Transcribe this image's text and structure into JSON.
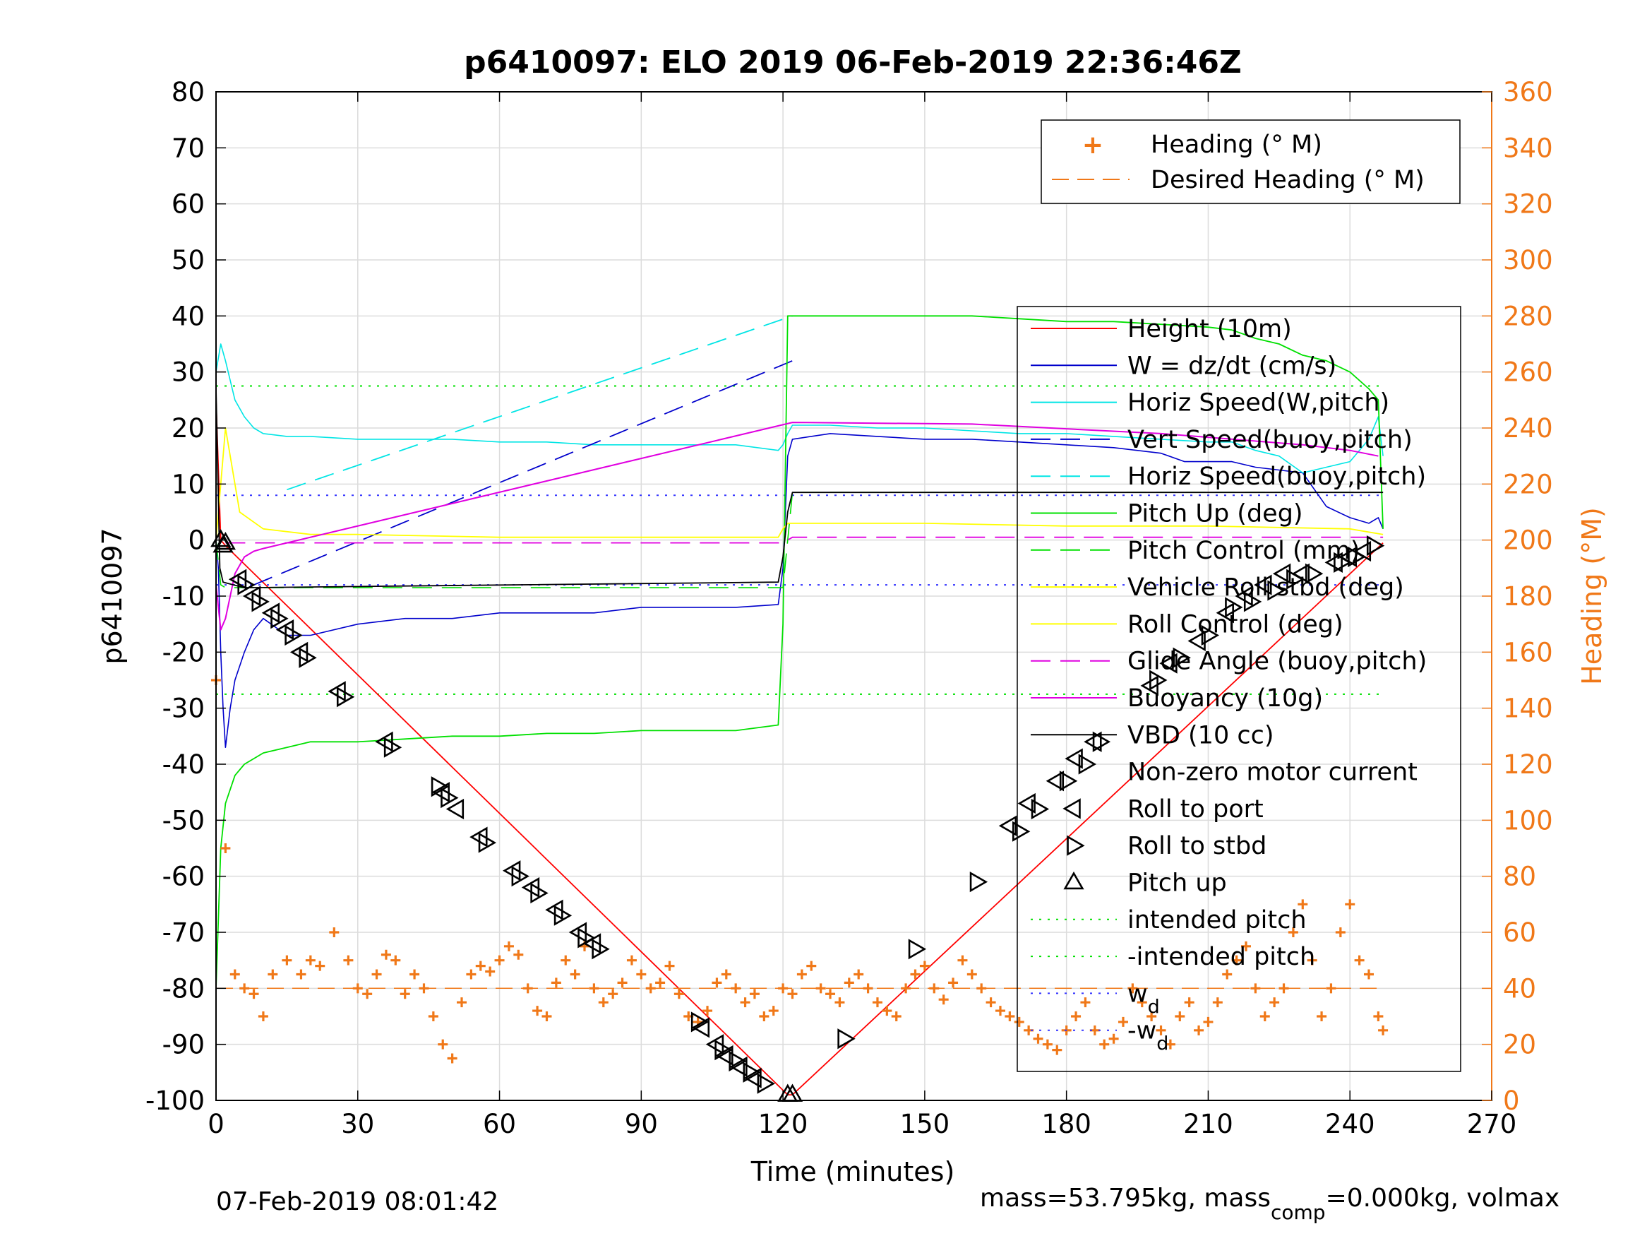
{
  "chart_data": {
    "type": "line",
    "title": "p6410097: ELO 2019 06-Feb-2019 22:36:46Z",
    "xlabel": "Time (minutes)",
    "ylabel_left": "p6410097",
    "ylabel_right": "Heading (°M)",
    "xlim": [
      0,
      270
    ],
    "ylim_left": [
      -100,
      80
    ],
    "ylim_right": [
      0,
      360
    ],
    "x_ticks": [
      "0",
      "30",
      "60",
      "90",
      "120",
      "150",
      "180",
      "210",
      "240",
      "270"
    ],
    "y_ticks_left": [
      "80",
      "70",
      "60",
      "50",
      "40",
      "30",
      "20",
      "10",
      "0",
      "-10",
      "-20",
      "-30",
      "-40",
      "-50",
      "-60",
      "-70",
      "-80",
      "-90",
      "-100"
    ],
    "y_ticks_right": [
      "360",
      "340",
      "320",
      "300",
      "280",
      "260",
      "240",
      "220",
      "200",
      "180",
      "160",
      "140",
      "120",
      "100",
      "80",
      "60",
      "40",
      "20",
      "0"
    ],
    "grid": true,
    "footer_left": "07-Feb-2019 08:01:42",
    "footer_right_pre": "mass=53.795kg, mass",
    "footer_right_sub": "comp",
    "footer_right_post": "=0.000kg, volmax",
    "colors": {
      "height": "#ff0000",
      "w": "#0000cc",
      "horiz": "#00e5e5",
      "pitch": "#00e000",
      "roll": "#ffff00",
      "glide": "#e000e0",
      "buoy": "#e000e0",
      "vbd": "#000000",
      "heading": "#f07818",
      "wd": "#3333ff"
    },
    "legend_heading": {
      "placement": "top-right",
      "entries": [
        "Heading (° M)",
        "Desired Heading (° M)"
      ]
    },
    "legend_main": {
      "placement": "right",
      "entries": [
        "Height (10m)",
        "W = dz/dt (cm/s)",
        "Horiz Speed(W,pitch)",
        "Vert Speed(buoy,pitch)",
        "Horiz Speed(buoy,pitch)",
        "Pitch Up (deg)",
        "Pitch Control (mm)",
        "Vehicle Roll stbd (deg)",
        "Roll Control (deg)",
        "Glide Angle (buoy,pitch)",
        "Buoyancy (10g)",
        "VBD (10 cc)",
        "Non-zero motor current",
        "Roll to port",
        "Roll to stbd",
        "Pitch up",
        "intended pitch",
        "-intended pitch",
        "w",
        "-w"
      ],
      "wd_sub": "d"
    },
    "reference_lines": {
      "intended_pitch": 27.5,
      "w_d": 8
    },
    "series": [
      {
        "name": "Height (10m)",
        "x": [
          0,
          1,
          2,
          121,
          122,
          247
        ],
        "y": [
          25,
          0,
          -1,
          -99,
          -99,
          -0.5
        ]
      },
      {
        "name": "W = dz/dt (cm/s)",
        "x": [
          0,
          0.5,
          1,
          1.5,
          2,
          3,
          4,
          6,
          8,
          10,
          15,
          20,
          30,
          40,
          50,
          60,
          70,
          80,
          90,
          100,
          110,
          119,
          120,
          121,
          122,
          130,
          140,
          150,
          160,
          170,
          180,
          190,
          200,
          205,
          210,
          215,
          220,
          225,
          230,
          235,
          240,
          244,
          246,
          247
        ],
        "y": [
          0,
          -5,
          -20,
          -30,
          -37,
          -30,
          -25,
          -20,
          -16,
          -14,
          -17,
          -17,
          -15,
          -14,
          -14,
          -13,
          -13,
          -13,
          -12,
          -12,
          -12,
          -11.5,
          -5,
          15,
          18,
          19,
          18.5,
          18,
          18,
          17.5,
          17,
          16.5,
          15.5,
          14,
          14,
          14,
          13,
          12.5,
          12,
          6,
          4,
          3,
          4,
          2
        ]
      },
      {
        "name": "Horiz Speed(W,pitch)",
        "x": [
          0,
          1,
          2,
          4,
          6,
          8,
          10,
          15,
          20,
          30,
          40,
          50,
          60,
          70,
          80,
          90,
          100,
          110,
          119,
          120,
          121,
          122,
          130,
          140,
          150,
          160,
          170,
          180,
          190,
          200,
          210,
          215,
          220,
          225,
          230,
          235,
          240,
          244,
          246,
          247
        ],
        "y": [
          30,
          35,
          32,
          25,
          22,
          20,
          19,
          18.5,
          18.5,
          18,
          18,
          18,
          17.5,
          17.5,
          17,
          17,
          17,
          17,
          16,
          17,
          19,
          20.5,
          20.5,
          20,
          20,
          19.5,
          19,
          19,
          18.5,
          18,
          17.5,
          17.5,
          16,
          15,
          12,
          13,
          14,
          18,
          22,
          15
        ]
      },
      {
        "name": "Vert Speed(buoy,pitch)",
        "x": [
          8,
          122
        ],
        "y": [
          -8,
          32
        ]
      },
      {
        "name": "Horiz Speed(buoy,pitch)",
        "x": [
          15,
          122
        ],
        "y": [
          9,
          40
        ]
      },
      {
        "name": "Pitch Up (deg)",
        "x": [
          0,
          1,
          2,
          4,
          6,
          8,
          10,
          15,
          20,
          30,
          40,
          50,
          60,
          70,
          80,
          90,
          100,
          110,
          119,
          120,
          121,
          122,
          130,
          140,
          150,
          160,
          170,
          180,
          190,
          200,
          210,
          215,
          220,
          225,
          230,
          235,
          240,
          244,
          246,
          247
        ],
        "y": [
          -80,
          -55,
          -47,
          -42,
          -40,
          -39,
          -38,
          -37,
          -36,
          -36,
          -35.5,
          -35,
          -35,
          -34.5,
          -34.5,
          -34,
          -34,
          -34,
          -33,
          -15,
          40,
          40,
          40,
          40,
          40,
          40,
          39.5,
          39,
          39,
          38.5,
          38,
          37.5,
          36,
          35,
          33,
          32,
          30,
          27,
          25,
          2
        ]
      },
      {
        "name": "Pitch Control (mm)",
        "x": [
          0,
          1,
          2,
          120,
          121,
          122,
          247
        ],
        "y": [
          0,
          -8,
          -8.5,
          -8.5,
          0,
          8.5,
          8.5
        ]
      },
      {
        "name": "Vehicle Roll stbd (deg)",
        "x": [
          0,
          2,
          5,
          10,
          20,
          30,
          60,
          90,
          119,
          120,
          121,
          122,
          150,
          180,
          210,
          240,
          247
        ],
        "y": [
          0,
          20,
          5,
          2,
          1,
          1,
          0.5,
          0.5,
          0.5,
          2,
          3,
          3,
          3,
          2.5,
          2.5,
          2,
          1
        ]
      },
      {
        "name": "Glide Angle (buoy,pitch)",
        "x": [
          2,
          120,
          122,
          247
        ],
        "y": [
          -0.5,
          -0.5,
          0.5,
          0.5
        ]
      },
      {
        "name": "Buoyancy (10g)",
        "x": [
          0,
          1,
          2,
          4,
          6,
          8,
          10,
          122,
          160,
          200,
          230,
          240,
          246
        ],
        "y": [
          -8,
          -16,
          -14,
          -6,
          -3,
          -2,
          -1.5,
          21,
          20.7,
          19,
          17,
          16,
          15
        ]
      },
      {
        "name": "VBD (10 cc)",
        "x": [
          0,
          0.8,
          1.5,
          6,
          119,
          120,
          121,
          122,
          247
        ],
        "y": [
          27,
          -5,
          -7.5,
          -8.5,
          -7.5,
          -3,
          5,
          8.5,
          8.5
        ]
      },
      {
        "name": "Heading (° M)",
        "x": [
          0,
          2,
          4,
          6,
          8,
          10,
          12,
          15,
          18,
          20,
          22,
          25,
          28,
          30,
          32,
          34,
          36,
          38,
          40,
          42,
          44,
          46,
          48,
          50,
          52,
          54,
          56,
          58,
          60,
          62,
          64,
          66,
          68,
          70,
          72,
          74,
          76,
          78,
          80,
          82,
          84,
          86,
          88,
          90,
          92,
          94,
          96,
          98,
          100,
          102,
          104,
          106,
          108,
          110,
          112,
          114,
          116,
          118,
          120,
          122,
          124,
          126,
          128,
          130,
          132,
          134,
          136,
          138,
          140,
          142,
          144,
          146,
          148,
          150,
          152,
          154,
          156,
          158,
          160,
          162,
          164,
          166,
          168,
          170,
          172,
          174,
          176,
          178,
          180,
          182,
          184,
          186,
          188,
          190,
          192,
          194,
          196,
          198,
          200,
          202,
          204,
          206,
          208,
          210,
          212,
          214,
          216,
          218,
          220,
          222,
          224,
          226,
          228,
          230,
          232,
          234,
          236,
          238,
          240,
          242,
          244,
          246,
          247
        ],
        "y": [
          150,
          90,
          45,
          40,
          38,
          30,
          45,
          50,
          45,
          50,
          48,
          60,
          50,
          40,
          38,
          45,
          52,
          50,
          38,
          45,
          40,
          30,
          20,
          15,
          35,
          45,
          48,
          46,
          50,
          55,
          52,
          40,
          32,
          30,
          42,
          50,
          45,
          55,
          40,
          35,
          38,
          42,
          50,
          45,
          40,
          42,
          48,
          38,
          30,
          28,
          32,
          42,
          45,
          40,
          35,
          38,
          30,
          32,
          40,
          38,
          45,
          48,
          40,
          38,
          35,
          42,
          45,
          40,
          35,
          32,
          30,
          40,
          45,
          48,
          40,
          36,
          42,
          50,
          45,
          40,
          35,
          32,
          30,
          28,
          25,
          22,
          20,
          18,
          25,
          30,
          35,
          25,
          20,
          22,
          28,
          40,
          35,
          30,
          25,
          20,
          30,
          35,
          25,
          28,
          35,
          45,
          50,
          55,
          40,
          30,
          35,
          40,
          60,
          70,
          50,
          30,
          40,
          60,
          70,
          50,
          45,
          30,
          25
        ]
      },
      {
        "name": "Desired Heading (° M)",
        "x": [
          0,
          247
        ],
        "y": [
          40,
          40
        ]
      }
    ],
    "markers": {
      "pitch_up": {
        "x": [
          1,
          1.5,
          2,
          121,
          122
        ],
        "y": [
          0,
          -1,
          -0.5,
          -99,
          -99
        ]
      },
      "roll_port": {
        "x": [
          5,
          8,
          12,
          15,
          18,
          26,
          36,
          48,
          51,
          56,
          63,
          67,
          72,
          77,
          80,
          103,
          106,
          108,
          111,
          114,
          168,
          172,
          178,
          182,
          186,
          198,
          202,
          208,
          214,
          218,
          222,
          226,
          230,
          237,
          240,
          243
        ],
        "y": [
          -7,
          -10,
          -13,
          -16,
          -20,
          -27,
          -36,
          -45,
          -48,
          -53,
          -59,
          -62,
          -66,
          -70,
          -72,
          -87,
          -90,
          -92,
          -94,
          -96,
          -51,
          -47,
          -43,
          -39,
          -36,
          -26,
          -22,
          -18,
          -13,
          -10,
          -8,
          -6,
          -6,
          -4,
          -3,
          -2
        ]
      },
      "roll_stbd": {
        "x": [
          6,
          9,
          13,
          16,
          19,
          27,
          37,
          47,
          49,
          57,
          64,
          68,
          73,
          78,
          81,
          102,
          107,
          110,
          113,
          116,
          133,
          148,
          161,
          170,
          174,
          180,
          184,
          187,
          199,
          204,
          210,
          215,
          219,
          224,
          228,
          232,
          238,
          241,
          245
        ],
        "y": [
          -8,
          -11,
          -14,
          -17,
          -21,
          -28,
          -37,
          -44,
          -46,
          -54,
          -60,
          -63,
          -67,
          -71,
          -73,
          -86,
          -91,
          -93,
          -95,
          -97,
          -89,
          -73,
          -61,
          -52,
          -48,
          -43,
          -40,
          -36,
          -25,
          -21,
          -17,
          -12,
          -11,
          -9,
          -7,
          -6,
          -4,
          -3,
          -1
        ]
      }
    }
  }
}
